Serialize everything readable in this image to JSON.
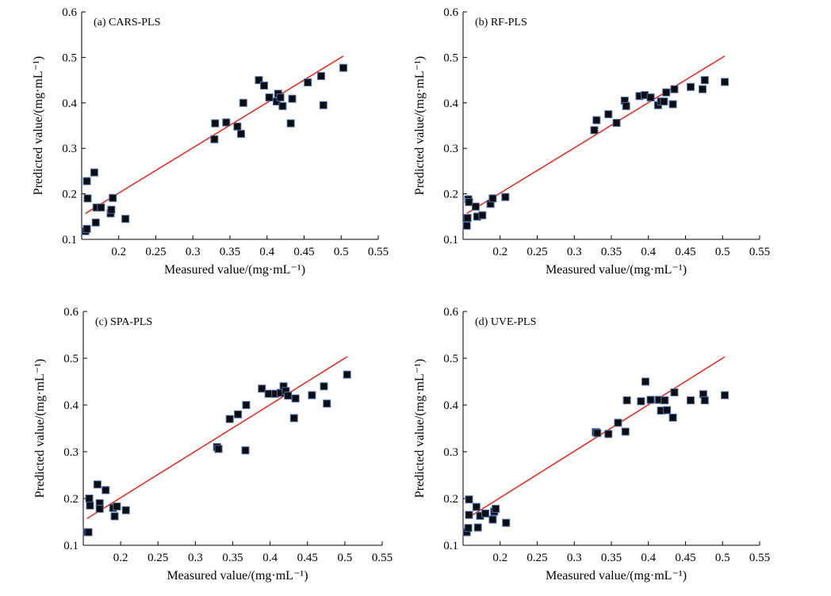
{
  "chart_data": [
    {
      "type": "scatter",
      "title": "(a)   CARS-PLS",
      "xlabel": "Measured value/(mg·mL⁻¹)",
      "ylabel": "Predicted value/(mg·mL⁻¹)",
      "xlim": [
        0.15,
        0.55
      ],
      "ylim": [
        0.1,
        0.6
      ],
      "xticks": [
        "0.2",
        "0.25",
        "0.3",
        "0.35",
        "0.4",
        "0.45",
        "0.5",
        "0.55"
      ],
      "yticks": [
        "0.1",
        "0.2",
        "0.3",
        "0.4",
        "0.5",
        "0.6"
      ],
      "fit_line": [
        [
          0.155,
          0.157
        ],
        [
          0.503,
          0.503
        ]
      ],
      "points": [
        [
          0.155,
          0.118
        ],
        [
          0.157,
          0.123
        ],
        [
          0.157,
          0.228
        ],
        [
          0.158,
          0.19
        ],
        [
          0.167,
          0.247
        ],
        [
          0.169,
          0.137
        ],
        [
          0.17,
          0.17
        ],
        [
          0.176,
          0.17
        ],
        [
          0.189,
          0.157
        ],
        [
          0.19,
          0.165
        ],
        [
          0.192,
          0.191
        ],
        [
          0.209,
          0.145
        ],
        [
          0.329,
          0.32
        ],
        [
          0.33,
          0.355
        ],
        [
          0.345,
          0.357
        ],
        [
          0.36,
          0.348
        ],
        [
          0.365,
          0.332
        ],
        [
          0.368,
          0.4
        ],
        [
          0.389,
          0.45
        ],
        [
          0.396,
          0.438
        ],
        [
          0.403,
          0.412
        ],
        [
          0.413,
          0.403
        ],
        [
          0.415,
          0.42
        ],
        [
          0.418,
          0.412
        ],
        [
          0.421,
          0.393
        ],
        [
          0.432,
          0.355
        ],
        [
          0.434,
          0.409
        ],
        [
          0.455,
          0.445
        ],
        [
          0.473,
          0.459
        ],
        [
          0.476,
          0.395
        ],
        [
          0.503,
          0.477
        ]
      ]
    },
    {
      "type": "scatter",
      "title": "(b)   RF-PLS",
      "xlabel": "Measured value/(mg·mL⁻¹)",
      "ylabel": "Predicted value/(mg·mL⁻¹)",
      "xlim": [
        0.15,
        0.55
      ],
      "ylim": [
        0.1,
        0.6
      ],
      "xticks": [
        "0.2",
        "0.25",
        "0.3",
        "0.35",
        "0.4",
        "0.45",
        "0.5",
        "0.55"
      ],
      "yticks": [
        "0.1",
        "0.2",
        "0.3",
        "0.4",
        "0.5",
        "0.6"
      ],
      "fit_line": [
        [
          0.155,
          0.157
        ],
        [
          0.503,
          0.503
        ]
      ],
      "points": [
        [
          0.155,
          0.13
        ],
        [
          0.156,
          0.147
        ],
        [
          0.157,
          0.188
        ],
        [
          0.158,
          0.182
        ],
        [
          0.167,
          0.172
        ],
        [
          0.169,
          0.15
        ],
        [
          0.176,
          0.153
        ],
        [
          0.187,
          0.178
        ],
        [
          0.19,
          0.19
        ],
        [
          0.207,
          0.193
        ],
        [
          0.327,
          0.34
        ],
        [
          0.33,
          0.362
        ],
        [
          0.346,
          0.375
        ],
        [
          0.357,
          0.356
        ],
        [
          0.368,
          0.405
        ],
        [
          0.37,
          0.393
        ],
        [
          0.388,
          0.415
        ],
        [
          0.395,
          0.417
        ],
        [
          0.403,
          0.412
        ],
        [
          0.413,
          0.395
        ],
        [
          0.417,
          0.403
        ],
        [
          0.421,
          0.403
        ],
        [
          0.424,
          0.423
        ],
        [
          0.433,
          0.397
        ],
        [
          0.435,
          0.43
        ],
        [
          0.457,
          0.435
        ],
        [
          0.473,
          0.43
        ],
        [
          0.476,
          0.45
        ],
        [
          0.503,
          0.446
        ]
      ]
    },
    {
      "type": "scatter",
      "title": "(c)   SPA-PLS",
      "xlabel": "Measured value/(mg·mL⁻¹)",
      "ylabel": "Predicted value/(mg·mL⁻¹)",
      "xlim": [
        0.15,
        0.55
      ],
      "ylim": [
        0.1,
        0.6
      ],
      "xticks": [
        "0.2",
        "0.25",
        "0.3",
        "0.35",
        "0.4",
        "0.45",
        "0.5",
        "0.55"
      ],
      "yticks": [
        "0.1",
        "0.2",
        "0.3",
        "0.4",
        "0.5",
        "0.6"
      ],
      "fit_line": [
        [
          0.155,
          0.157
        ],
        [
          0.503,
          0.503
        ]
      ],
      "points": [
        [
          0.155,
          0.128
        ],
        [
          0.157,
          0.128
        ],
        [
          0.158,
          0.2
        ],
        [
          0.159,
          0.185
        ],
        [
          0.169,
          0.23
        ],
        [
          0.172,
          0.19
        ],
        [
          0.172,
          0.178
        ],
        [
          0.18,
          0.218
        ],
        [
          0.19,
          0.18
        ],
        [
          0.192,
          0.162
        ],
        [
          0.195,
          0.183
        ],
        [
          0.207,
          0.175
        ],
        [
          0.329,
          0.31
        ],
        [
          0.331,
          0.306
        ],
        [
          0.346,
          0.37
        ],
        [
          0.357,
          0.38
        ],
        [
          0.367,
          0.303
        ],
        [
          0.368,
          0.4
        ],
        [
          0.389,
          0.435
        ],
        [
          0.398,
          0.424
        ],
        [
          0.407,
          0.424
        ],
        [
          0.414,
          0.426
        ],
        [
          0.418,
          0.44
        ],
        [
          0.421,
          0.43
        ],
        [
          0.424,
          0.42
        ],
        [
          0.432,
          0.372
        ],
        [
          0.434,
          0.414
        ],
        [
          0.456,
          0.421
        ],
        [
          0.472,
          0.44
        ],
        [
          0.476,
          0.403
        ],
        [
          0.503,
          0.465
        ]
      ]
    },
    {
      "type": "scatter",
      "title": "(d)   UVE-PLS",
      "xlabel": "Measured value/(mg·mL⁻¹)",
      "ylabel": "Predicted value/(mg·mL⁻¹)",
      "xlim": [
        0.15,
        0.55
      ],
      "ylim": [
        0.1,
        0.6
      ],
      "xticks": [
        "0.2",
        "0.25",
        "0.3",
        "0.35",
        "0.4",
        "0.45",
        "0.5",
        "0.55"
      ],
      "yticks": [
        "0.1",
        "0.2",
        "0.3",
        "0.4",
        "0.5",
        "0.6"
      ],
      "fit_line": [
        [
          0.155,
          0.157
        ],
        [
          0.503,
          0.503
        ]
      ],
      "points": [
        [
          0.155,
          0.128
        ],
        [
          0.157,
          0.137
        ],
        [
          0.158,
          0.198
        ],
        [
          0.158,
          0.165
        ],
        [
          0.168,
          0.182
        ],
        [
          0.17,
          0.138
        ],
        [
          0.173,
          0.163
        ],
        [
          0.18,
          0.168
        ],
        [
          0.19,
          0.155
        ],
        [
          0.192,
          0.172
        ],
        [
          0.194,
          0.178
        ],
        [
          0.208,
          0.148
        ],
        [
          0.329,
          0.342
        ],
        [
          0.331,
          0.34
        ],
        [
          0.346,
          0.338
        ],
        [
          0.359,
          0.362
        ],
        [
          0.369,
          0.343
        ],
        [
          0.371,
          0.41
        ],
        [
          0.39,
          0.408
        ],
        [
          0.396,
          0.45
        ],
        [
          0.403,
          0.411
        ],
        [
          0.414,
          0.411
        ],
        [
          0.417,
          0.388
        ],
        [
          0.422,
          0.41
        ],
        [
          0.425,
          0.389
        ],
        [
          0.433,
          0.373
        ],
        [
          0.435,
          0.427
        ],
        [
          0.457,
          0.41
        ],
        [
          0.474,
          0.423
        ],
        [
          0.476,
          0.41
        ],
        [
          0.503,
          0.421
        ]
      ]
    }
  ]
}
